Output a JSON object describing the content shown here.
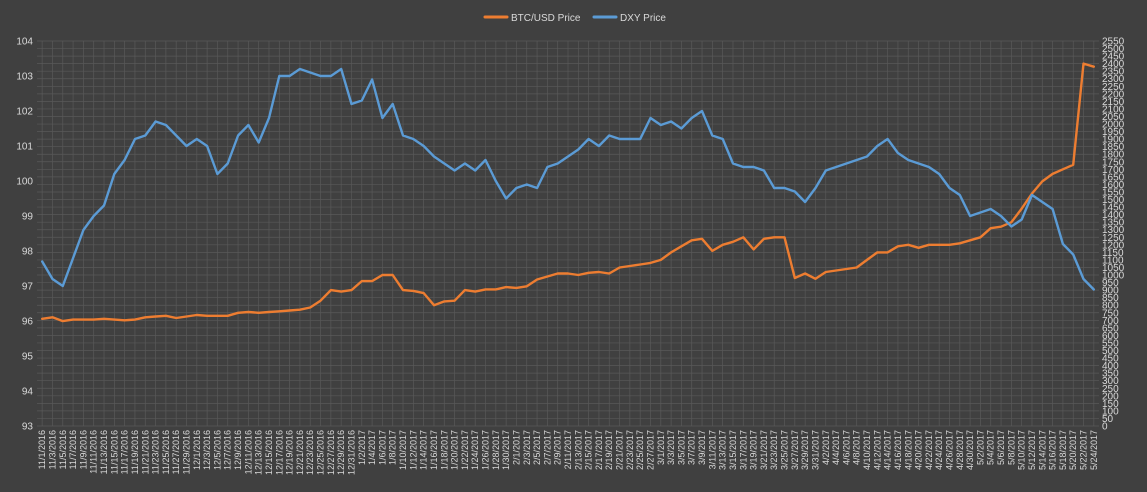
{
  "chart_data": {
    "type": "line",
    "title": "",
    "legend_position": "top-center",
    "grid": true,
    "colors": {
      "background": "#404040",
      "grid": "#595959",
      "text": "#d9d9d9",
      "btc": "#ed7d31",
      "dxy": "#5b9bd5"
    },
    "axes": {
      "y_left": {
        "min": 93,
        "max": 104,
        "step": 1,
        "series": "DXY Price"
      },
      "y_right": {
        "min": 0,
        "max": 2550,
        "step": 50,
        "series": "BTC/USD Price"
      }
    },
    "x_labels": [
      "11/1/2016",
      "11/3/2016",
      "11/5/2016",
      "11/7/2016",
      "11/9/2016",
      "11/11/2016",
      "11/13/2016",
      "11/15/2016",
      "11/17/2016",
      "11/19/2016",
      "11/21/2016",
      "11/23/2016",
      "11/25/2016",
      "11/27/2016",
      "11/29/2016",
      "12/1/2016",
      "12/3/2016",
      "12/5/2016",
      "12/7/2016",
      "12/9/2016",
      "12/11/2016",
      "12/13/2016",
      "12/15/2016",
      "12/17/2016",
      "12/19/2016",
      "12/21/2016",
      "12/23/2016",
      "12/25/2016",
      "12/27/2016",
      "12/29/2016",
      "12/31/2016",
      "1/2/2017",
      "1/4/2017",
      "1/6/2017",
      "1/8/2017",
      "1/10/2017",
      "1/12/2017",
      "1/14/2017",
      "1/16/2017",
      "1/18/2017",
      "1/20/2017",
      "1/22/2017",
      "1/24/2017",
      "1/26/2017",
      "1/28/2017",
      "1/30/2017",
      "2/1/2017",
      "2/3/2017",
      "2/5/2017",
      "2/7/2017",
      "2/9/2017",
      "2/11/2017",
      "2/13/2017",
      "2/15/2017",
      "2/17/2017",
      "2/19/2017",
      "2/21/2017",
      "2/23/2017",
      "2/25/2017",
      "2/27/2017",
      "3/1/2017",
      "3/3/2017",
      "3/5/2017",
      "3/7/2017",
      "3/9/2017",
      "3/11/2017",
      "3/13/2017",
      "3/15/2017",
      "3/17/2017",
      "3/19/2017",
      "3/21/2017",
      "3/23/2017",
      "3/25/2017",
      "3/27/2017",
      "3/29/2017",
      "3/31/2017",
      "4/2/2017",
      "4/4/2017",
      "4/6/2017",
      "4/8/2017",
      "4/10/2017",
      "4/12/2017",
      "4/14/2017",
      "4/16/2017",
      "4/18/2017",
      "4/20/2017",
      "4/22/2017",
      "4/24/2017",
      "4/26/2017",
      "4/28/2017",
      "4/30/2017",
      "5/2/2017",
      "5/4/2017",
      "5/6/2017",
      "5/8/2017",
      "5/10/2017",
      "5/12/2017",
      "5/14/2017",
      "5/16/2017",
      "5/18/2017",
      "5/20/2017",
      "5/22/2017",
      "5/24/2017"
    ],
    "series": [
      {
        "name": "BTC/USD Price",
        "axis": "right",
        "color": "#ed7d31",
        "values": [
          710,
          720,
          695,
          705,
          705,
          705,
          710,
          705,
          700,
          705,
          720,
          725,
          730,
          715,
          725,
          735,
          730,
          730,
          730,
          750,
          755,
          750,
          755,
          760,
          765,
          770,
          785,
          830,
          900,
          890,
          900,
          960,
          960,
          1000,
          1000,
          900,
          895,
          880,
          800,
          825,
          830,
          900,
          890,
          905,
          905,
          920,
          915,
          925,
          970,
          990,
          1010,
          1010,
          1000,
          1015,
          1020,
          1010,
          1050,
          1060,
          1070,
          1080,
          1100,
          1150,
          1190,
          1230,
          1240,
          1160,
          1200,
          1220,
          1250,
          1170,
          1240,
          1250,
          1250,
          980,
          1010,
          975,
          1020,
          1030,
          1040,
          1050,
          1100,
          1150,
          1150,
          1190,
          1200,
          1180,
          1200,
          1200,
          1200,
          1210,
          1230,
          1250,
          1310,
          1320,
          1350,
          1440,
          1540,
          1620,
          1670,
          1700,
          1730,
          2400,
          2380
        ]
      },
      {
        "name": "DXY Price",
        "axis": "left",
        "color": "#5b9bd5",
        "values": [
          97.7,
          97.2,
          97.0,
          97.8,
          98.6,
          99.0,
          99.3,
          100.2,
          100.6,
          101.2,
          101.3,
          101.7,
          101.6,
          101.3,
          101.0,
          101.2,
          101.0,
          100.2,
          100.5,
          101.3,
          101.6,
          101.1,
          101.8,
          103.0,
          103.0,
          103.2,
          103.1,
          103.0,
          103.0,
          103.2,
          102.2,
          102.3,
          102.9,
          101.8,
          102.2,
          101.3,
          101.2,
          101.0,
          100.7,
          100.5,
          100.3,
          100.5,
          100.3,
          100.6,
          100.0,
          99.5,
          99.8,
          99.9,
          99.8,
          100.4,
          100.5,
          100.7,
          100.9,
          101.2,
          101.0,
          101.3,
          101.2,
          101.2,
          101.2,
          101.8,
          101.6,
          101.7,
          101.5,
          101.8,
          102.0,
          101.3,
          101.2,
          100.5,
          100.4,
          100.4,
          100.3,
          99.8,
          99.8,
          99.7,
          99.4,
          99.8,
          100.3,
          100.4,
          100.5,
          100.6,
          100.7,
          101.0,
          101.2,
          100.8,
          100.6,
          100.5,
          100.4,
          100.2,
          99.8,
          99.6,
          99.0,
          99.1,
          99.2,
          99.0,
          98.7,
          98.9,
          99.6,
          99.4,
          99.2,
          98.2,
          97.9,
          97.2,
          96.9
        ]
      }
    ]
  }
}
